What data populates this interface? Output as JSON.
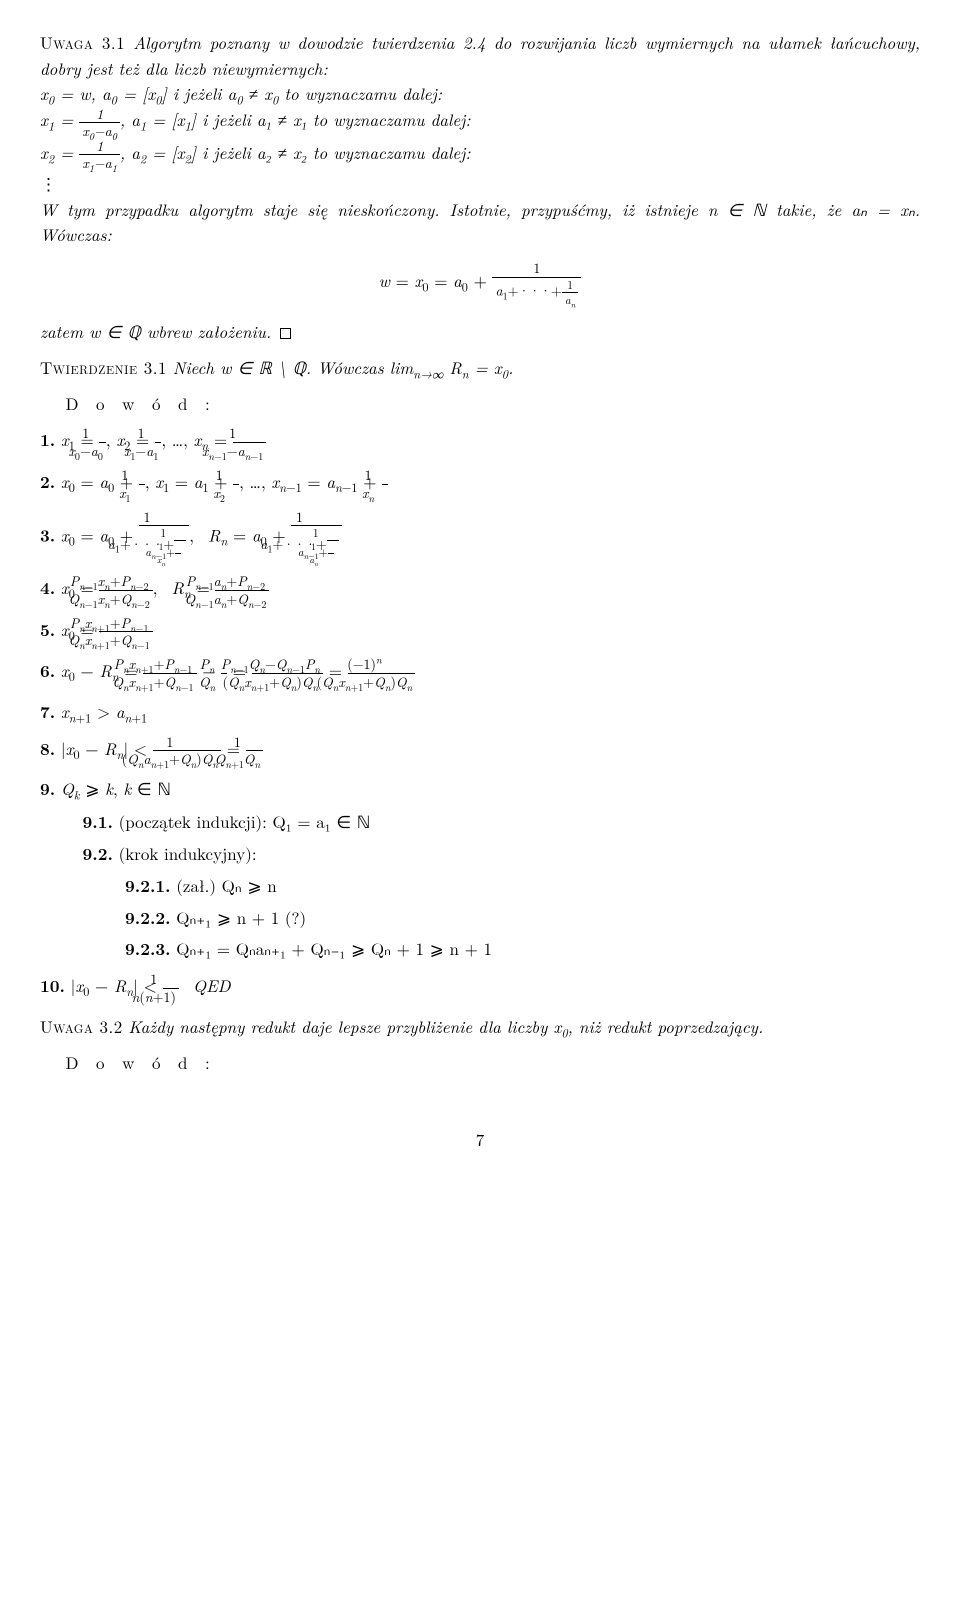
{
  "uwaga31_label": "Uwaga 3.1",
  "uwaga31_text_a": "Algorytm poznany w dowodzie twierdzenia 2.4 do rozwijania liczb wymiernych na ułamek łańcuchowy, dobry jest też dla liczb niewymiernych:",
  "line_x0": "x₀ = w, a₀ = [x₀] i jeżeli a₀ ≠ x₀ to wyznaczamu dalej:",
  "line_x1": " i jeżeli a₁ ≠ x₁ to wyznaczamu dalej:",
  "line_x2": " i jeżeli a₂ ≠ x₂ to wyznaczamu dalej:",
  "vdots": "⋮",
  "paragraph_w": "W tym przypadku algorytm staje się nieskończony. Istotnie, przypuśćmy, iż istnieje n ∈ ℕ takie, że aₙ = xₙ. Wówczas:",
  "zatem": "zatem w ∈ ℚ wbrew założeniu.",
  "tw31_label": "Twierdzenie 3.1",
  "tw31_text": "Niech w ∈ ℝ \\ ℚ. Wówczas limₙ→∞ Rₙ = x₀.",
  "dowod": "D o w ó d :",
  "li1_prefix": "1.",
  "li2_prefix": "2.",
  "li3_prefix": "3.",
  "li4_prefix": "4.",
  "li5_prefix": "5.",
  "li6_prefix": "6.",
  "li7_prefix": "7.",
  "li7_text": "xₙ₊₁ > aₙ₊₁",
  "li8_prefix": "8.",
  "li9_prefix": "9.",
  "li9_text": "Qₖ ⩾ k, k ∈ ℕ",
  "li91_prefix": "9.1.",
  "li91_text": "(początek indukcji): Q₁ = a₁ ∈ ℕ",
  "li92_prefix": "9.2.",
  "li92_text": "(krok indukcyjny):",
  "li921_prefix": "9.2.1.",
  "li921_text": "(zał.) Qₙ ⩾ n",
  "li922_prefix": "9.2.2.",
  "li922_text": "Qₙ₊₁ ⩾ n + 1 (?)",
  "li923_prefix": "9.2.3.",
  "li923_text": "Qₙ₊₁ = Qₙaₙ₊₁ + Qₙ₋₁ ⩾ Qₙ + 1 ⩾ n + 1",
  "li10_prefix": "10.",
  "li10_suffix": "QED",
  "uwaga32_label": "Uwaga 3.2",
  "uwaga32_text": "Każdy następny redukt daje lepsze przybliżenie dla liczby x₀, niż redukt poprzedzający.",
  "pagenum": "7"
}
